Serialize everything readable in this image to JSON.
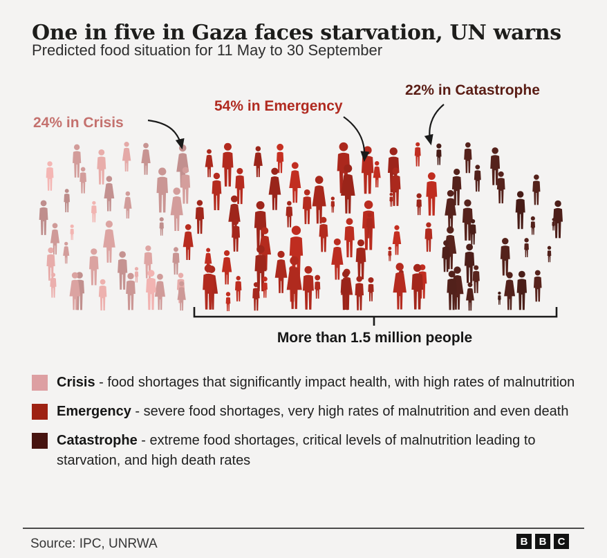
{
  "colors": {
    "background": "#f4f3f2",
    "bracket": "#1a1a1a",
    "arrow": "#1a1a1a"
  },
  "header": {
    "title": "One in five in Gaza faces starvation, UN warns",
    "subtitle": "Predicted food situation for 11 May to 30 September"
  },
  "chart_data": {
    "type": "pictogram",
    "title": "One in five in Gaza faces starvation, UN warns",
    "subtitle": "Predicted food situation for 11 May to 30 September",
    "period": "11 May to 30 September",
    "categories": [
      "Crisis",
      "Emergency",
      "Catastrophe"
    ],
    "values": [
      24,
      54,
      22
    ],
    "unit": "percent of population",
    "annotations": [
      {
        "label": "24% in Crisis",
        "value": 24,
        "category": "Crisis",
        "color": "#c4716e"
      },
      {
        "label": "54% in Emergency",
        "value": 54,
        "category": "Emergency",
        "color": "#b02a20"
      },
      {
        "label": "22% in Catastrophe",
        "value": 22,
        "category": "Catastrophe",
        "color": "#5a1d15"
      }
    ],
    "figure_colors": {
      "Crisis": "#dba3a1",
      "Emergency": "#b12a1e",
      "Catastrophe": "#50201a"
    },
    "total_label": "More than 1.5 million people",
    "legend_position": "bottom"
  },
  "legend": {
    "items": [
      {
        "term": "Crisis",
        "description": "- food shortages that significantly impact health, with high rates of malnutrition",
        "color": "#dd9fa2"
      },
      {
        "term": "Emergency",
        "description": "- severe food shortages, very high rates of malnutrition and even death",
        "color": "#9e2213"
      },
      {
        "term": "Catastrophe",
        "description": "- extreme food shortages, critical levels of malnutrition leading to starvation, and high death rates",
        "color": "#471410"
      }
    ]
  },
  "footer": {
    "source": "Source: IPC, UNRWA",
    "logo_letters": [
      "B",
      "B",
      "C"
    ]
  }
}
